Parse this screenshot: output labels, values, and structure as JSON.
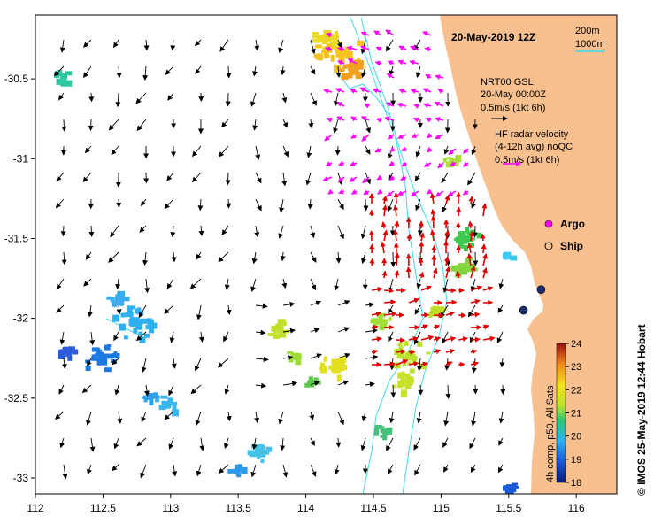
{
  "title": "20-May-2019 12Z",
  "isobaths": {
    "label1": "200m",
    "label2": "1000m",
    "color": "#40d8e8"
  },
  "legend": {
    "model_line1": "NRT00 GSL",
    "model_line2": "20-May 00:00Z",
    "model_scale": "0.5m/s (1kt 6h)",
    "radar_line1": "HF radar velocity",
    "radar_line2": "(4-12h avg) noQC",
    "radar_scale": "0.5m/s (1kt 6h)",
    "argo_label": "Argo",
    "ship_label": "Ship"
  },
  "colorbar": {
    "label": "4h comp, p50, All Sats",
    "min": 18,
    "max": 24,
    "ticks": [
      "24",
      "23",
      "22",
      "21",
      "20",
      "19",
      "18"
    ]
  },
  "credit": "© IMOS 25-May-2019 12:44 Hobart",
  "x_axis": {
    "min": 112,
    "max": 116.3,
    "ticks": [
      "112",
      "112.5",
      "113",
      "113.5",
      "114",
      "114.5",
      "115",
      "115.5",
      "116"
    ]
  },
  "y_axis": {
    "min": -33.1,
    "max": -30.1,
    "ticks": [
      "-30.5",
      "-31",
      "-31.5",
      "-32",
      "-32.5",
      "-33"
    ]
  },
  "colors": {
    "land": "#f9c08f",
    "radar_arrow": "#e00000",
    "model_arrow": "#ff00ff",
    "ship": "#1a2d6e"
  },
  "ships": [
    {
      "lon": 115.74,
      "lat": -31.82
    },
    {
      "lon": 115.61,
      "lat": -31.95
    }
  ]
}
